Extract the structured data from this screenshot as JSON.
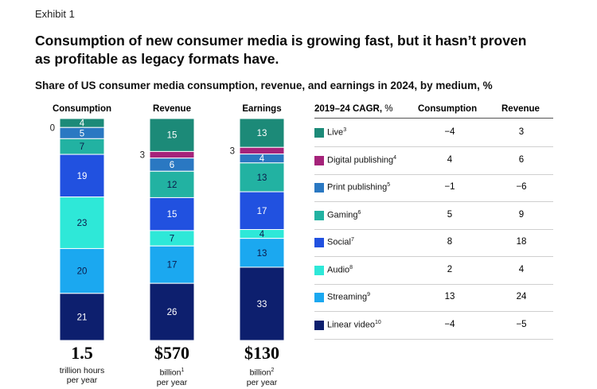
{
  "exhibit": "Exhibit 1",
  "title": "Consumption of new consumer media is growing fast, but it hasn’t proven as profitable as legacy formats have.",
  "subtitle": "Share of US consumer media consumption, revenue, and earnings in 2024, by medium, %",
  "colors": {
    "Live": "#1c8a78",
    "Digital publishing": "#a5237a",
    "Print publishing": "#2a78c2",
    "Gaming": "#22b2a2",
    "Social": "#2151e0",
    "Audio": "#2ee8d8",
    "Streaming": "#1ba8f0",
    "Linear video": "#0d1f6e"
  },
  "chart_data": {
    "type": "bar",
    "stacked": true,
    "categories": [
      "Consumption",
      "Revenue",
      "Earnings"
    ],
    "series": [
      {
        "name": "Live",
        "values": [
          4,
          15,
          13
        ]
      },
      {
        "name": "Digital publishing",
        "values": [
          0,
          3,
          3
        ]
      },
      {
        "name": "Print publishing",
        "values": [
          5,
          6,
          4
        ]
      },
      {
        "name": "Gaming",
        "values": [
          7,
          12,
          13
        ]
      },
      {
        "name": "Social",
        "values": [
          19,
          15,
          17
        ]
      },
      {
        "name": "Audio",
        "values": [
          23,
          7,
          4
        ]
      },
      {
        "name": "Streaming",
        "values": [
          20,
          17,
          13
        ]
      },
      {
        "name": "Linear video",
        "values": [
          21,
          26,
          33
        ]
      }
    ],
    "note": "Consumption column shows Live = 4 and Digital publishing = 0 as printed; values per column total ~100%",
    "totals": [
      {
        "value": "1.5",
        "unit": "trillion hours",
        "unit2": "per year",
        "footnote": ""
      },
      {
        "value": "$570",
        "unit": "billion",
        "unit2": "per year",
        "footnote": "1"
      },
      {
        "value": "$130",
        "unit": "billion",
        "unit2": "per year",
        "footnote": "2"
      }
    ]
  },
  "table": {
    "header_cagr": "2019–24 CAGR,",
    "header_cagr_unit": " %",
    "header_consumption": "Consumption",
    "header_revenue": "Revenue",
    "rows": [
      {
        "label": "Live",
        "sup": "3",
        "consumption": "−4",
        "revenue": "3"
      },
      {
        "label": "Digital publishing",
        "sup": "4",
        "consumption": "4",
        "revenue": "6"
      },
      {
        "label": "Print publishing",
        "sup": "5",
        "consumption": "−1",
        "revenue": "−6"
      },
      {
        "label": "Gaming",
        "sup": "6",
        "consumption": "5",
        "revenue": "9"
      },
      {
        "label": "Social",
        "sup": "7",
        "consumption": "8",
        "revenue": "18"
      },
      {
        "label": "Audio",
        "sup": "8",
        "consumption": "2",
        "revenue": "4"
      },
      {
        "label": "Streaming",
        "sup": "9",
        "consumption": "13",
        "revenue": "24"
      },
      {
        "label": "Linear video",
        "sup": "10",
        "consumption": "−4",
        "revenue": "−5"
      }
    ]
  }
}
